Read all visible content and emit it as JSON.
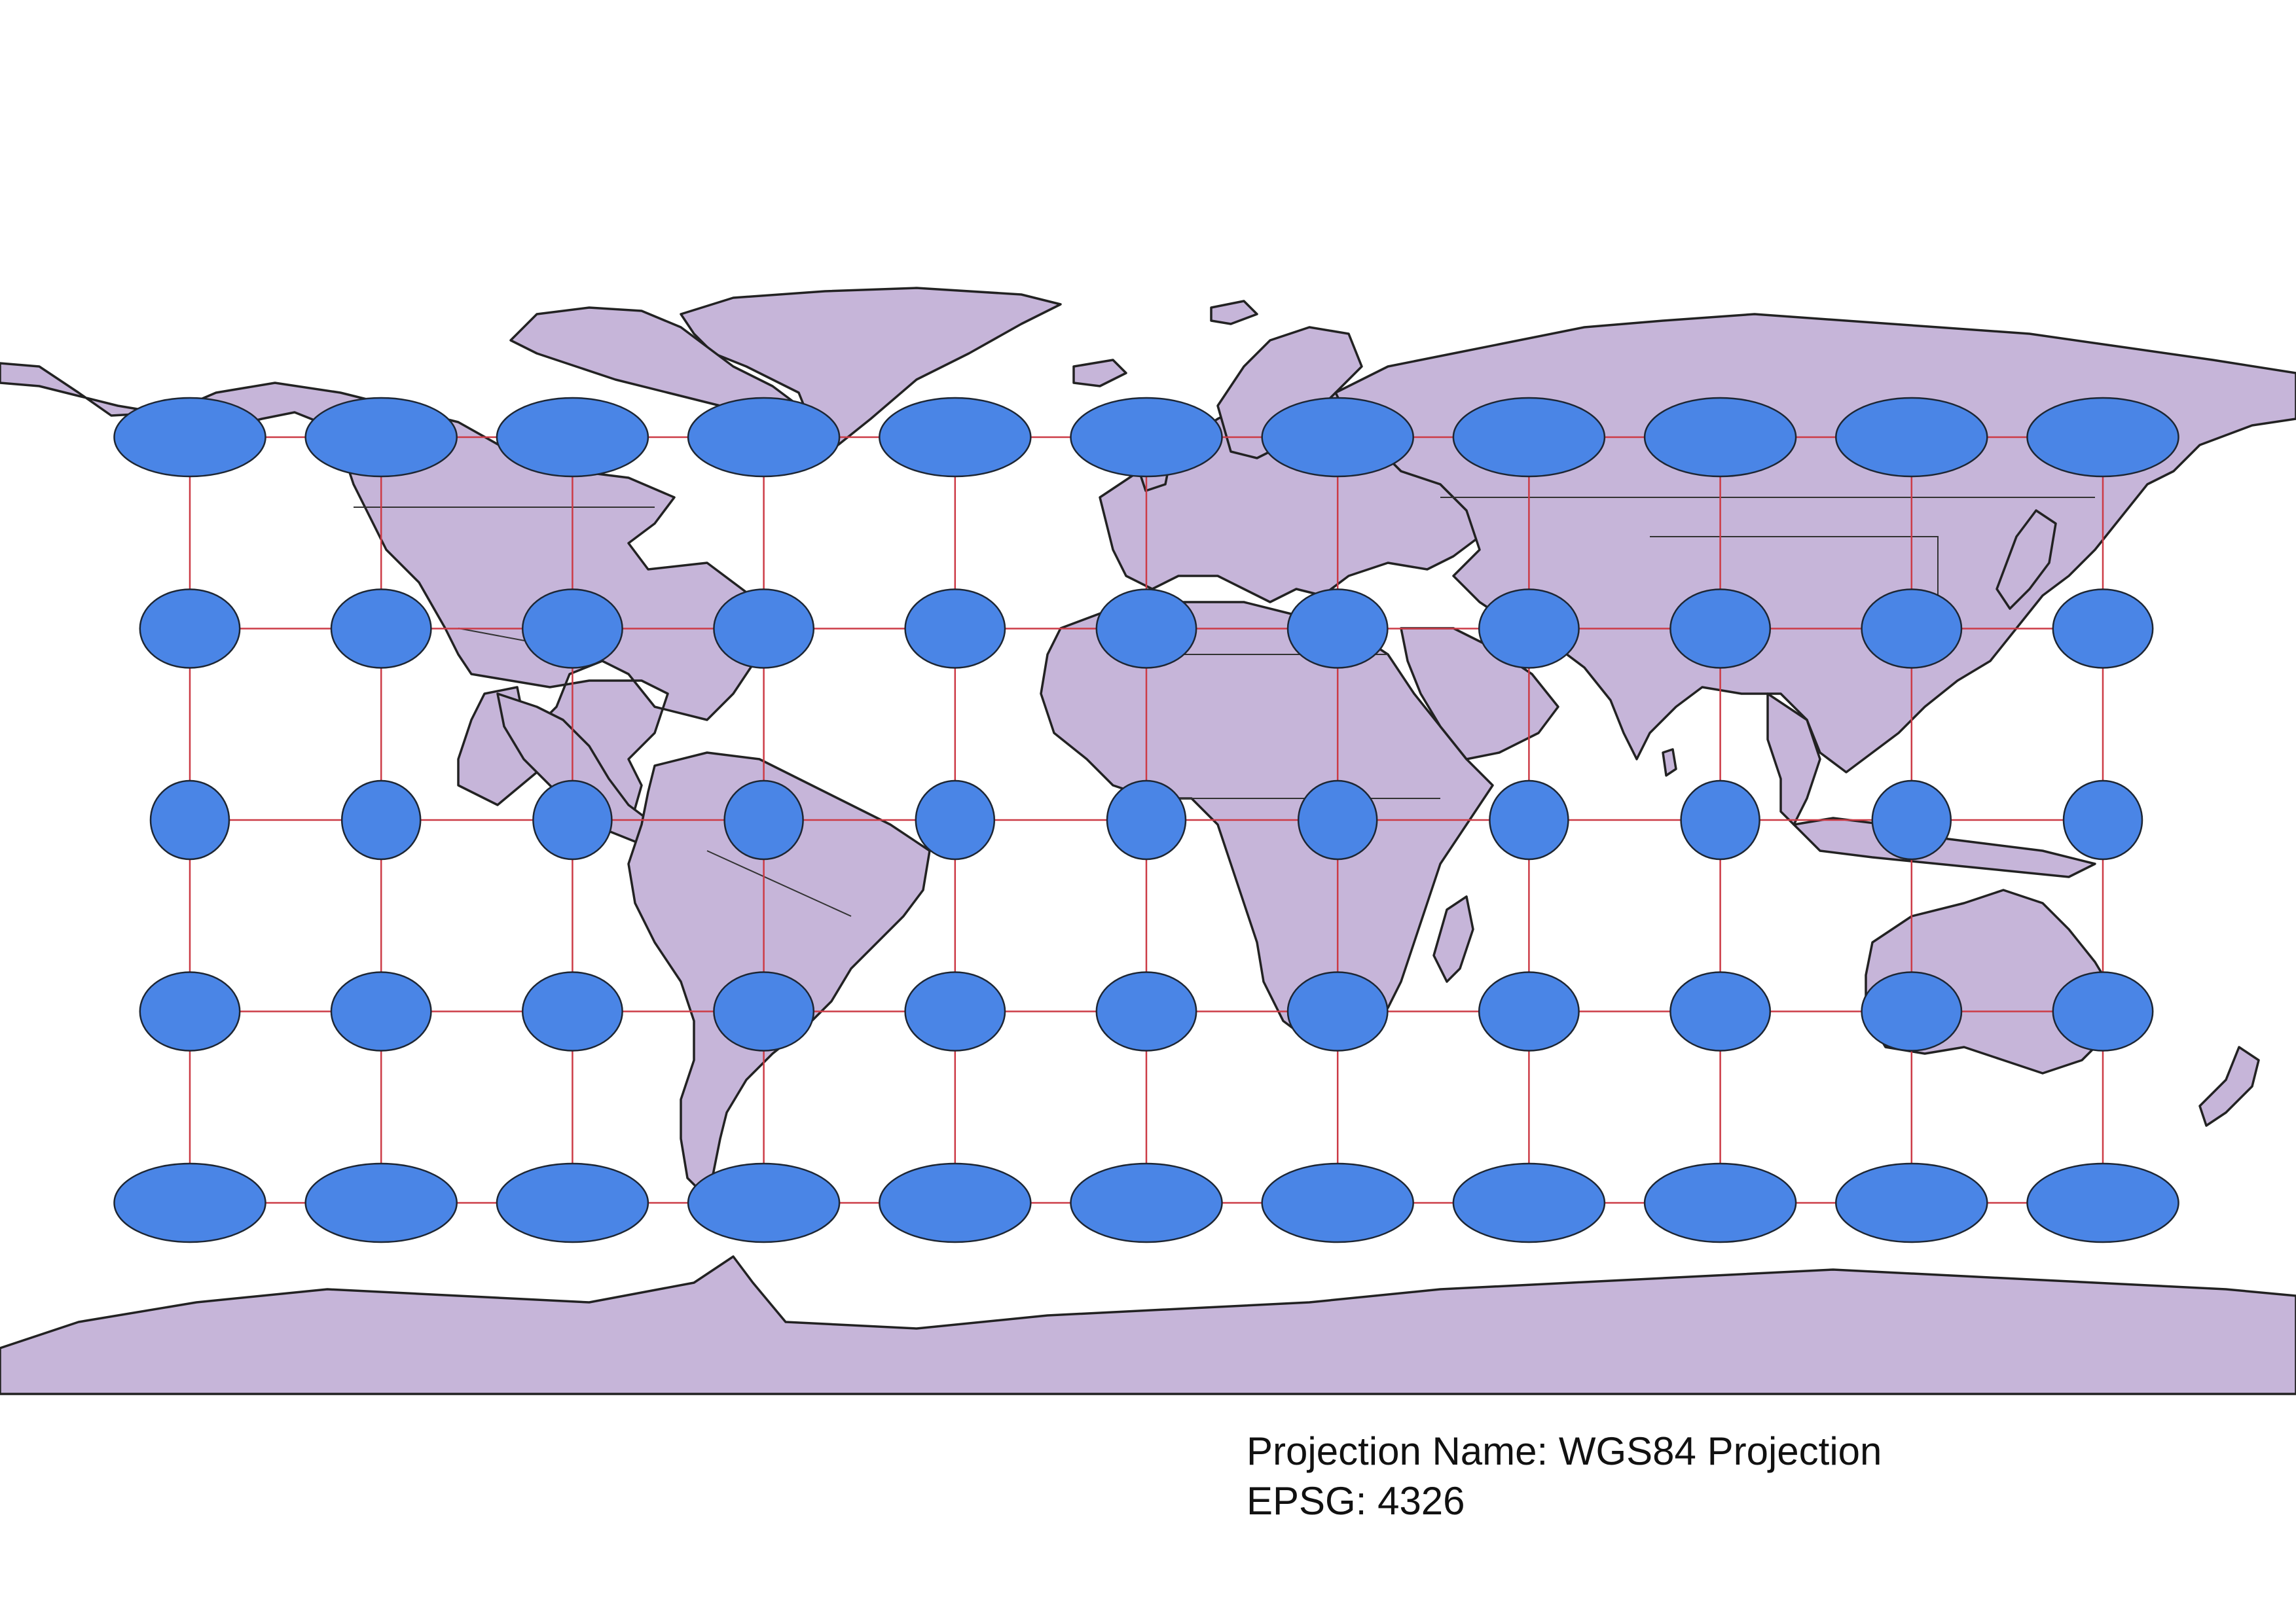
{
  "map": {
    "projection_label": "Projection Name: WGS84 Projection",
    "epsg_label": "EPSG: 4326",
    "colors": {
      "land": "#c6b5d9",
      "coastline": "#222222",
      "graticule": "#cc3b46",
      "indicatrix": "#4a85e6"
    },
    "graticule": {
      "longitudes": [
        -150,
        -120,
        -90,
        -60,
        -30,
        0,
        30,
        60,
        90,
        120,
        150
      ],
      "latitudes": [
        60,
        30,
        0,
        -30,
        -60
      ]
    }
  }
}
